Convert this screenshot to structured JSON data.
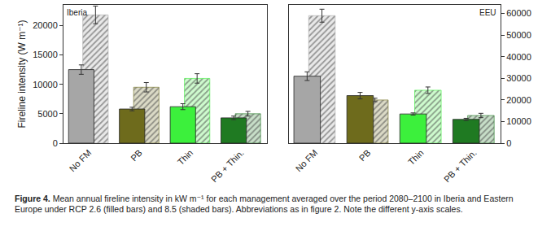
{
  "chart_data": [
    {
      "type": "bar",
      "title": "Iberia",
      "y_label": "Fireline intensity (W m⁻¹)",
      "categories": [
        "No FM",
        "PB",
        "Thin",
        "PB + Thin."
      ],
      "colors": [
        "#a6a6a6",
        "#6e6b1c",
        "#3cf03c",
        "#1f7a22"
      ],
      "ylim": [
        0,
        23500
      ],
      "yticks": [
        0,
        5000,
        10000,
        15000,
        20000
      ],
      "grid": false,
      "series": [
        {
          "marker": "solid",
          "values": [
            12500,
            5800,
            6200,
            4300
          ],
          "error": [
            800,
            300,
            500,
            300
          ]
        },
        {
          "marker": "hatched",
          "values": [
            21800,
            9500,
            11000,
            5000
          ],
          "error": [
            1500,
            800,
            800,
            400
          ]
        }
      ]
    },
    {
      "type": "bar",
      "title": "EEU",
      "categories": [
        "No FM",
        "PB",
        "Thin",
        "PB + Thin."
      ],
      "colors": [
        "#a6a6a6",
        "#6e6b1c",
        "#3cf03c",
        "#1f7a22"
      ],
      "ylim": [
        0,
        64000
      ],
      "yticks": [
        0,
        10000,
        20000,
        30000,
        40000,
        50000,
        60000
      ],
      "grid": false,
      "series": [
        {
          "marker": "solid",
          "values": [
            31000,
            22000,
            13500,
            11000
          ],
          "error": [
            2000,
            1500,
            500,
            500
          ]
        },
        {
          "marker": "hatched",
          "values": [
            59000,
            20000,
            24500,
            12800
          ],
          "error": [
            3000,
            800,
            1500,
            1000
          ]
        }
      ]
    }
  ],
  "caption": {
    "label": "Figure 4.",
    "text": "Mean annual fireline intensity in kW m⁻¹ for each management averaged over the period 2080–2100 in Iberia and Eastern Europe under RCP 2.6 (filled bars) and 8.5 (shaded bars). Abbreviations as in figure 2. Note the different y-axis scales."
  }
}
